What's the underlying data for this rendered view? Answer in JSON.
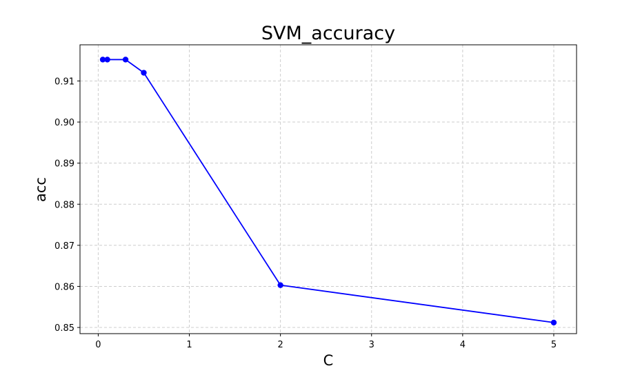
{
  "chart_data": {
    "type": "line",
    "title": "SVM_accuracy",
    "xlabel": "C",
    "ylabel": "acc",
    "x": [
      0.05,
      0.1,
      0.3,
      0.5,
      2,
      5
    ],
    "series": [
      {
        "values": [
          0.9152,
          0.9152,
          0.9152,
          0.912,
          0.8603,
          0.8512
        ],
        "color": "#0000ff",
        "marker": "circle"
      }
    ],
    "xticks": [
      "0",
      "1",
      "2",
      "3",
      "4",
      "5"
    ],
    "yticks": [
      "0.85",
      "0.86",
      "0.87",
      "0.88",
      "0.89",
      "0.90",
      "0.91"
    ],
    "xlim": [
      -0.2,
      5.25
    ],
    "ylim": [
      0.8485,
      0.9188
    ],
    "grid": true,
    "grid_style": "dashed",
    "grid_color": "#cccccc"
  }
}
